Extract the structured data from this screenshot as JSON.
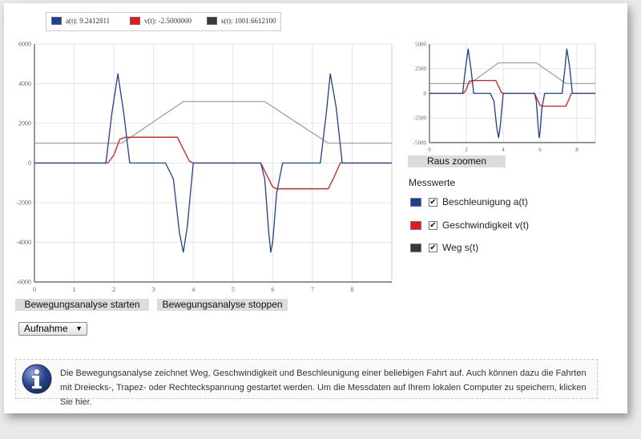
{
  "legend": {
    "items": [
      {
        "label": "a(t): 9.2412811",
        "color": "#1f3e9c"
      },
      {
        "label": "v(t): -2.5000000",
        "color": "#e8171b"
      },
      {
        "label": "s(t): 1001.6612100",
        "color": "#3a3a3a"
      }
    ]
  },
  "chart_data": [
    {
      "type": "line",
      "title": "",
      "xlim": [
        0,
        9
      ],
      "ylim": [
        -6000,
        6000
      ],
      "x_ticks": [
        "0",
        "1",
        "2",
        "3",
        "4",
        "5",
        "6",
        "7",
        "8"
      ],
      "y_ticks": [
        "6000",
        "4000",
        "2000",
        "0",
        "-2000",
        "-4000",
        "-6000"
      ],
      "grid": true,
      "series": [
        {
          "name": "Beschleunigung a(t)",
          "color": "#1f3e9c",
          "x": [
            0,
            1.8,
            1.95,
            2.1,
            2.25,
            2.4,
            2.6,
            3.3,
            3.5,
            3.65,
            3.75,
            3.85,
            4.0,
            4.3,
            5.7,
            5.8,
            5.9,
            5.95,
            6.0,
            6.1,
            6.25,
            6.6,
            7.2,
            7.35,
            7.45,
            7.6,
            7.75,
            9
          ],
          "y": [
            0,
            0,
            2500,
            4500,
            2500,
            0,
            0,
            0,
            -800,
            -3500,
            -4500,
            -3200,
            0,
            0,
            0,
            -800,
            -3500,
            -4500,
            -4000,
            -1500,
            0,
            0,
            0,
            2500,
            4500,
            2800,
            0,
            0
          ]
        },
        {
          "name": "Geschwindigkeit v(t)",
          "color": "#e8171b",
          "x": [
            0,
            1.85,
            2.0,
            2.15,
            2.3,
            3.6,
            3.75,
            3.9,
            4.0,
            5.7,
            5.85,
            6.0,
            6.1,
            7.4,
            7.55,
            7.7,
            9
          ],
          "y": [
            0,
            0,
            400,
            1200,
            1300,
            1300,
            700,
            100,
            0,
            0,
            -600,
            -1200,
            -1300,
            -1300,
            -700,
            0,
            0
          ]
        },
        {
          "name": "Weg s(t)",
          "color": "#8a8a8a",
          "x": [
            0,
            2.2,
            3.75,
            5.8,
            7.4,
            9
          ],
          "y": [
            1000,
            1000,
            3100,
            3100,
            1000,
            1000
          ]
        }
      ]
    },
    {
      "type": "line",
      "title": "",
      "xlim": [
        0,
        9
      ],
      "ylim": [
        -5000,
        5000
      ],
      "x_ticks": [
        "0",
        "2",
        "4",
        "6",
        "8"
      ],
      "y_ticks": [
        "5000",
        "2500",
        "0",
        "-2500",
        "-5000"
      ],
      "grid": true,
      "series": [
        {
          "name": "Beschleunigung a(t)",
          "color": "#1f3e9c",
          "x": [
            0,
            1.8,
            1.95,
            2.1,
            2.25,
            2.4,
            2.6,
            3.3,
            3.5,
            3.65,
            3.75,
            3.85,
            4.0,
            4.3,
            5.7,
            5.8,
            5.9,
            5.95,
            6.0,
            6.1,
            6.25,
            6.6,
            7.2,
            7.35,
            7.45,
            7.6,
            7.75,
            9
          ],
          "y": [
            0,
            0,
            2500,
            4500,
            2500,
            0,
            0,
            0,
            -800,
            -3500,
            -4500,
            -3200,
            0,
            0,
            0,
            -800,
            -3500,
            -4500,
            -4000,
            -1500,
            0,
            0,
            0,
            2500,
            4500,
            2800,
            0,
            0
          ]
        },
        {
          "name": "Geschwindigkeit v(t)",
          "color": "#e8171b",
          "x": [
            0,
            1.85,
            2.0,
            2.15,
            2.3,
            3.6,
            3.75,
            3.9,
            4.0,
            5.7,
            5.85,
            6.0,
            6.1,
            7.4,
            7.55,
            7.7,
            9
          ],
          "y": [
            0,
            0,
            400,
            1200,
            1300,
            1300,
            700,
            100,
            0,
            0,
            -600,
            -1200,
            -1300,
            -1300,
            -700,
            0,
            0
          ]
        },
        {
          "name": "Weg s(t)",
          "color": "#8a8a8a",
          "x": [
            0,
            2.2,
            3.75,
            5.8,
            7.4,
            9
          ],
          "y": [
            1000,
            1000,
            3100,
            3100,
            1000,
            1000
          ]
        }
      ]
    }
  ],
  "buttons": {
    "start": "Bewegungsanalyse starten",
    "stop": "Bewegungsanalyse stoppen",
    "zoom_out": "Raus zoomen"
  },
  "dropdown": {
    "selected": "Aufnahme"
  },
  "messwerte": {
    "title": "Messwerte",
    "items": [
      {
        "label": "Beschleunigung a(t)",
        "color": "#1f3e9c",
        "checked": true
      },
      {
        "label": "Geschwindigkeit v(t)",
        "color": "#e8171b",
        "checked": true
      },
      {
        "label": "Weg s(t)",
        "color": "#3a3a3a",
        "checked": true
      }
    ]
  },
  "info": {
    "icon": "info-icon",
    "text": "Die Bewegungsanalyse zeichnet Weg, Geschwindigkeit und Beschleunigung einer beliebigen Fahrt auf. Auch können dazu die Fahrten mit Dreiecks-, Trapez- oder Rechteckspannung gestartet werden. Um die Messdaten auf Ihrem lokalen Computer zu speichern, klicken Sie hier."
  }
}
